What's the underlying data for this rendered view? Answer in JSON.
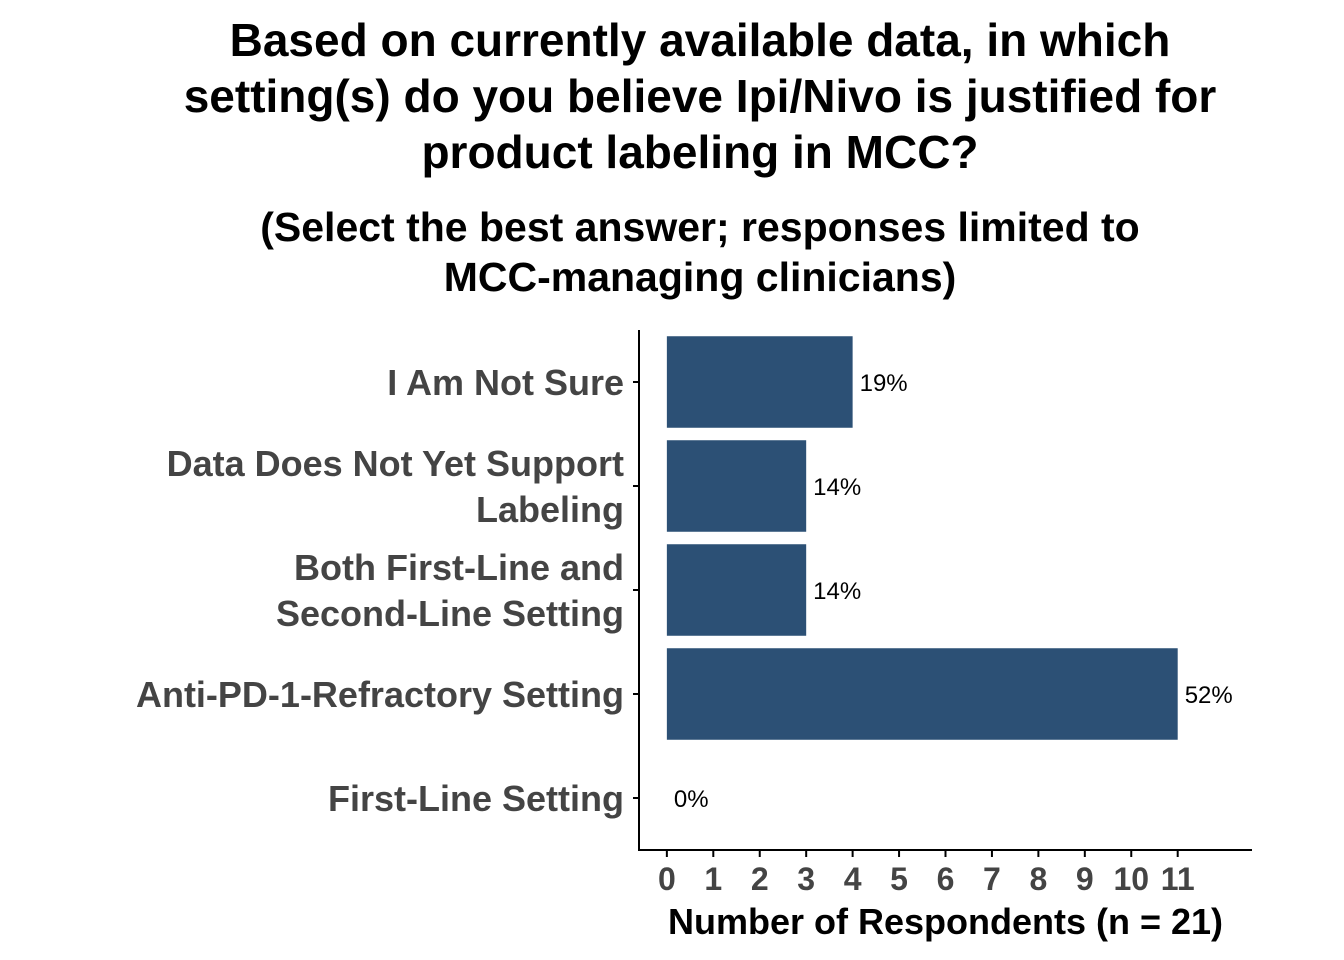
{
  "chart_data": {
    "type": "bar",
    "orientation": "horizontal",
    "title_lines": [
      "Based on currently available data, in which",
      "setting(s) do you believe Ipi/Nivo is justified for",
      "product labeling in MCC?"
    ],
    "subtitle_lines": [
      "(Select the best answer; responses limited to",
      "MCC-managing clinicians)"
    ],
    "categories": [
      [
        "I Am Not Sure"
      ],
      [
        "Data Does Not Yet Support",
        "Labeling"
      ],
      [
        "Both First-Line and",
        "Second-Line Setting"
      ],
      [
        "Anti-PD-1-Refractory Setting"
      ],
      [
        "First-Line Setting"
      ]
    ],
    "values": [
      4,
      3,
      3,
      11,
      0
    ],
    "data_labels": [
      "19%",
      "14%",
      "14%",
      "52%",
      "0%"
    ],
    "xlabel": "Number of Respondents (n = 21)",
    "ylabel": "",
    "xticks": [
      "0",
      "1",
      "2",
      "3",
      "4",
      "5",
      "6",
      "7",
      "8",
      "9",
      "10",
      "11"
    ],
    "xlim": [
      -0.6,
      12.6
    ],
    "bar_color": "#2c5075",
    "grid": false,
    "legend": "none"
  }
}
